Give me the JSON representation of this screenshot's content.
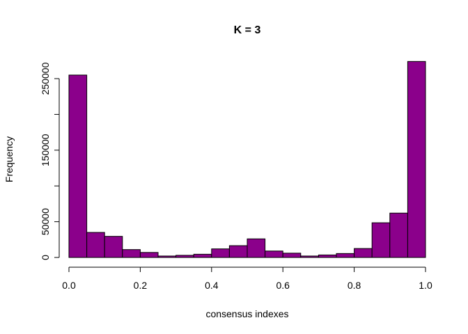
{
  "chart_data": {
    "type": "bar",
    "title": "K = 3",
    "xlabel": "consensus indexes",
    "ylabel": "Frequency",
    "bar_color": "#8b008b",
    "xlim": [
      0,
      1
    ],
    "ylim": [
      0,
      275000
    ],
    "x_ticks": [
      {
        "value": 0.0,
        "label": "0.0"
      },
      {
        "value": 0.2,
        "label": "0.2"
      },
      {
        "value": 0.4,
        "label": "0.4"
      },
      {
        "value": 0.6,
        "label": "0.6"
      },
      {
        "value": 0.8,
        "label": "0.8"
      },
      {
        "value": 1.0,
        "label": "1.0"
      }
    ],
    "y_ticks": [
      {
        "value": 0,
        "label": "0"
      },
      {
        "value": 50000,
        "label": "50000"
      },
      {
        "value": 150000,
        "label": "150000"
      },
      {
        "value": 250000,
        "label": "250000"
      }
    ],
    "y_minor_ticks": [
      100000,
      200000
    ],
    "bins": [
      {
        "start": 0.0,
        "end": 0.05,
        "value": 255000
      },
      {
        "start": 0.05,
        "end": 0.1,
        "value": 35000
      },
      {
        "start": 0.1,
        "end": 0.15,
        "value": 29500
      },
      {
        "start": 0.15,
        "end": 0.2,
        "value": 11000
      },
      {
        "start": 0.2,
        "end": 0.25,
        "value": 7000
      },
      {
        "start": 0.25,
        "end": 0.3,
        "value": 2000
      },
      {
        "start": 0.3,
        "end": 0.35,
        "value": 3000
      },
      {
        "start": 0.35,
        "end": 0.4,
        "value": 4500
      },
      {
        "start": 0.4,
        "end": 0.45,
        "value": 12000
      },
      {
        "start": 0.45,
        "end": 0.5,
        "value": 16500
      },
      {
        "start": 0.5,
        "end": 0.55,
        "value": 26000
      },
      {
        "start": 0.55,
        "end": 0.6,
        "value": 9000
      },
      {
        "start": 0.6,
        "end": 0.65,
        "value": 6000
      },
      {
        "start": 0.65,
        "end": 0.7,
        "value": 2000
      },
      {
        "start": 0.7,
        "end": 0.75,
        "value": 3500
      },
      {
        "start": 0.75,
        "end": 0.8,
        "value": 5500
      },
      {
        "start": 0.8,
        "end": 0.85,
        "value": 12500
      },
      {
        "start": 0.85,
        "end": 0.9,
        "value": 48500
      },
      {
        "start": 0.9,
        "end": 0.95,
        "value": 62000
      },
      {
        "start": 0.95,
        "end": 1.0,
        "value": 274000
      }
    ]
  }
}
